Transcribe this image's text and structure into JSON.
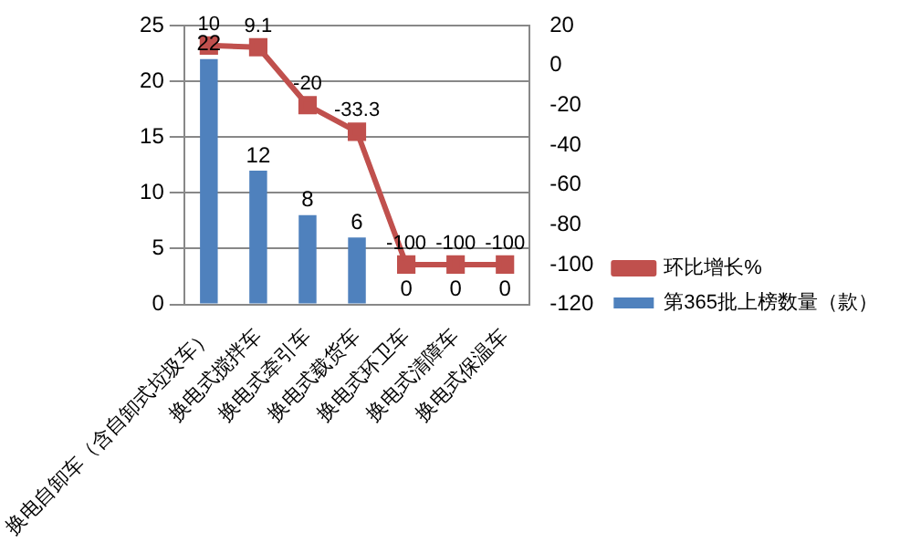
{
  "chart_data": {
    "type": "bar",
    "categories": [
      "换电自卸车（含自卸式垃圾车）",
      "换电式搅拌车",
      "换电式牵引车",
      "换电式载货车",
      "换电式环卫车",
      "换电式清障车",
      "换电式保温车"
    ],
    "series": [
      {
        "name": "第365批上榜数量（款）",
        "color": "#4f81bd",
        "values": [
          22,
          12,
          8,
          6,
          0,
          0,
          0
        ]
      },
      {
        "name": "环比增长%",
        "type": "line",
        "axis": "y2",
        "color": "#c0504d",
        "marker": "square",
        "values": [
          10,
          9.1,
          -20,
          -33.3,
          -100,
          -100,
          -100
        ]
      }
    ],
    "ylim": [
      0,
      25
    ],
    "yticks": [
      0,
      5,
      10,
      15,
      20,
      25
    ],
    "y2lim": [
      -120,
      20
    ],
    "y2ticks": [
      -120,
      -100,
      -80,
      -60,
      -40,
      -20,
      0,
      20
    ],
    "grid": "y",
    "legend": "right",
    "data_labels": true
  }
}
